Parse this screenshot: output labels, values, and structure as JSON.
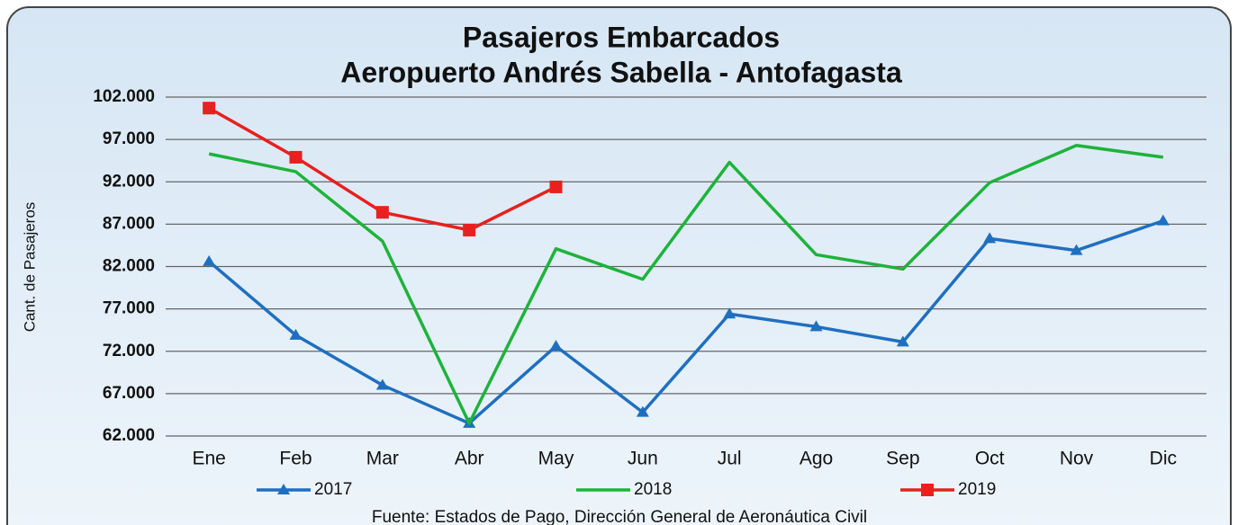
{
  "chart_data": {
    "type": "line",
    "title": "Pasajeros Embarcados",
    "subtitle": "Aeropuerto Andrés Sabella - Antofagasta",
    "y_label": "Cant. de Pasajeros",
    "source": "Fuente: Estados de Pago, Dirección General de Aeronáutica Civil",
    "categories": [
      "Ene",
      "Feb",
      "Mar",
      "Abr",
      "May",
      "Jun",
      "Jul",
      "Ago",
      "Sep",
      "Oct",
      "Nov",
      "Dic"
    ],
    "series": [
      {
        "name": "2017",
        "color": "#1f6fc0",
        "marker": "triangle",
        "values": [
          82600,
          73900,
          68000,
          63500,
          72600,
          64800,
          76400,
          74900,
          73100,
          85300,
          83900,
          87400
        ]
      },
      {
        "name": "2018",
        "color": "#1db33a",
        "marker": "none",
        "values": [
          95300,
          93200,
          85000,
          63500,
          84100,
          80500,
          94300,
          83400,
          81700,
          91900,
          96300,
          94900
        ]
      },
      {
        "name": "2019",
        "color": "#e8201e",
        "marker": "square",
        "values": [
          100700,
          94900,
          88400,
          86300,
          91400,
          null,
          null,
          null,
          null,
          null,
          null,
          null
        ]
      }
    ],
    "ylim": [
      62000,
      102000
    ],
    "yticks": [
      {
        "value": 62000,
        "label": "62.000"
      },
      {
        "value": 67000,
        "label": "67.000"
      },
      {
        "value": 72000,
        "label": "72.000"
      },
      {
        "value": 77000,
        "label": "77.000"
      },
      {
        "value": 82000,
        "label": "82.000"
      },
      {
        "value": 87000,
        "label": "87.000"
      },
      {
        "value": 92000,
        "label": "92.000"
      },
      {
        "value": 97000,
        "label": "97.000"
      },
      {
        "value": 102000,
        "label": "102.000"
      }
    ],
    "grid": true,
    "legend": "bottom"
  }
}
